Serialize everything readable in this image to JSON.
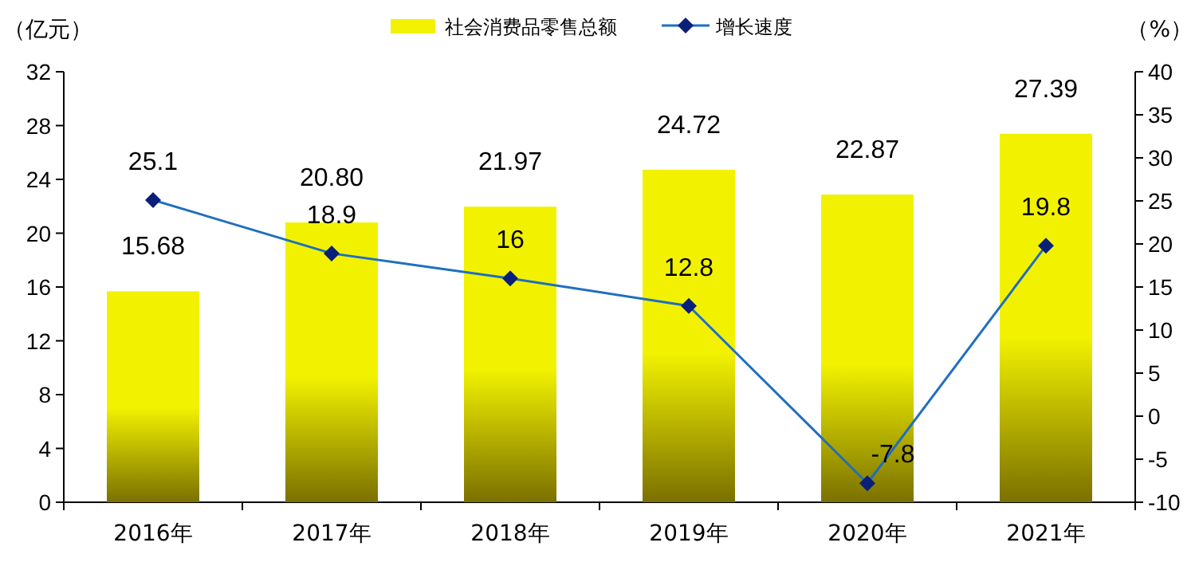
{
  "chart_data": {
    "type": "bar",
    "ylabel": "（亿元）",
    "y2label": "（%）",
    "categories": [
      "2016年",
      "2017年",
      "2018年",
      "2019年",
      "2020年",
      "2021年"
    ],
    "series": [
      {
        "name": "社会消费品零售总额",
        "color": "#f2f200",
        "values": [
          15.68,
          20.8,
          21.97,
          24.72,
          22.87,
          27.39
        ],
        "value_labels": [
          "15.68",
          "20.80",
          "21.97",
          "24.72",
          "22.87",
          "27.39"
        ]
      },
      {
        "name": "增长速度",
        "type": "line",
        "axis": "y2",
        "color": "#1f6fc0",
        "marker": "diamond",
        "values": [
          25.1,
          18.9,
          16,
          12.8,
          -7.8,
          19.8
        ],
        "value_labels": [
          "25.1",
          "18.9",
          "16",
          "12.8",
          "-7.8",
          "19.8"
        ]
      }
    ],
    "ylim": [
      0,
      32
    ],
    "yticks": [
      0,
      4,
      8,
      12,
      16,
      20,
      24,
      28,
      32
    ],
    "y2lim": [
      -10,
      40
    ],
    "y2ticks": [
      -10,
      -5,
      0,
      5,
      10,
      15,
      20,
      25,
      30,
      35,
      40
    ],
    "legend": "top",
    "grid": false
  }
}
